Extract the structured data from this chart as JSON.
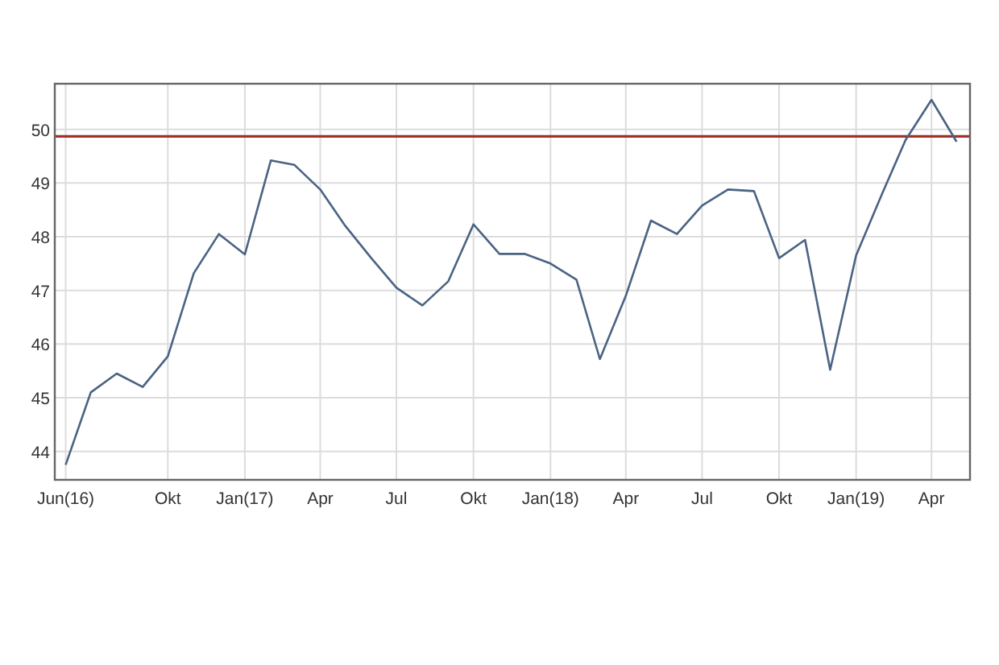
{
  "chart_data": {
    "type": "line",
    "x": [
      "2016-06",
      "2016-07",
      "2016-08",
      "2016-09",
      "2016-10",
      "2016-11",
      "2016-12",
      "2017-01",
      "2017-02",
      "2017-03",
      "2017-04",
      "2017-05",
      "2017-06",
      "2017-07",
      "2017-08",
      "2017-09",
      "2017-10",
      "2017-11",
      "2017-12",
      "2018-01",
      "2018-02",
      "2018-03",
      "2018-04",
      "2018-05",
      "2018-06",
      "2018-07",
      "2018-08",
      "2018-09",
      "2018-10",
      "2018-11",
      "2018-12",
      "2019-01",
      "2019-02",
      "2019-03",
      "2019-04",
      "2019-05"
    ],
    "series": [
      {
        "color": "#4a6383",
        "values": [
          43.75,
          45.1,
          45.45,
          45.2,
          45.77,
          47.32,
          48.05,
          47.67,
          49.42,
          49.34,
          48.88,
          48.2,
          47.6,
          47.05,
          46.72,
          47.17,
          48.23,
          47.68,
          47.68,
          47.5,
          47.2,
          45.72,
          46.9,
          48.3,
          48.05,
          48.58,
          48.88,
          48.85,
          47.6,
          47.94,
          45.52,
          47.65,
          48.8,
          49.8,
          50.55,
          49.77
        ]
      }
    ],
    "xlim": [
      "2016-05-19",
      "2019-05-17"
    ],
    "xticks": [
      {
        "value": "2016-06",
        "label": "Jun(16)"
      },
      {
        "value": "2016-10",
        "label": "Okt"
      },
      {
        "value": "2017-01",
        "label": "Jan(17)"
      },
      {
        "value": "2017-04",
        "label": "Apr"
      },
      {
        "value": "2017-07",
        "label": "Jul"
      },
      {
        "value": "2017-10",
        "label": "Okt"
      },
      {
        "value": "2018-01",
        "label": "Jan(18)"
      },
      {
        "value": "2018-04",
        "label": "Apr"
      },
      {
        "value": "2018-07",
        "label": "Jul"
      },
      {
        "value": "2018-10",
        "label": "Okt"
      },
      {
        "value": "2019-01",
        "label": "Jan(19)"
      },
      {
        "value": "2019-04",
        "label": "Apr"
      }
    ],
    "ylim": [
      43.47,
      50.85
    ],
    "yticks": [
      44,
      45,
      46,
      47,
      48,
      49,
      50
    ],
    "ref_lines": [
      {
        "axis": "y",
        "value": 49.87,
        "color": "#a0322a"
      }
    ],
    "grid": true,
    "marker": "none",
    "line_style": "solid"
  }
}
